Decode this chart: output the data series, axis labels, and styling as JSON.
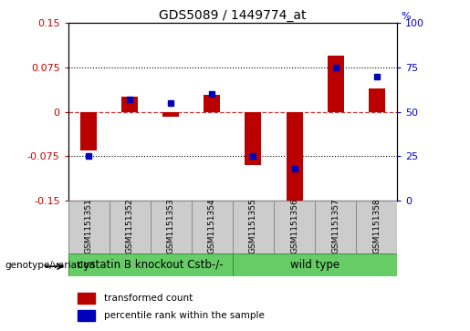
{
  "title": "GDS5089 / 1449774_at",
  "samples": [
    "GSM1151351",
    "GSM1151352",
    "GSM1151353",
    "GSM1151354",
    "GSM1151355",
    "GSM1151356",
    "GSM1151357",
    "GSM1151358"
  ],
  "transformed_count": [
    -0.065,
    0.025,
    -0.008,
    0.028,
    -0.09,
    -0.155,
    0.095,
    0.04
  ],
  "percentile_rank": [
    25,
    57,
    55,
    60,
    25,
    18,
    75,
    70
  ],
  "groups": [
    {
      "label": "cystatin B knockout Cstb-/-",
      "samples": [
        0,
        1,
        2,
        3
      ]
    },
    {
      "label": "wild type",
      "samples": [
        4,
        5,
        6,
        7
      ]
    }
  ],
  "bar_color": "#bb0000",
  "dot_color": "#0000bb",
  "ylim_left": [
    -0.15,
    0.15
  ],
  "ylim_right": [
    0,
    100
  ],
  "yticks_left": [
    -0.15,
    -0.075,
    0,
    0.075,
    0.15
  ],
  "yticks_right": [
    0,
    25,
    50,
    75,
    100
  ],
  "hline_y": [
    -0.075,
    0.0,
    0.075
  ],
  "legend_transformed": "transformed count",
  "legend_percentile": "percentile rank within the sample",
  "genotype_label": "genotype/variation",
  "left_tick_color": "#cc0000",
  "right_tick_color": "#0000cc",
  "bar_width": 0.4,
  "green_color": "#66cc66",
  "gray_color": "#cccccc",
  "sample_label_fontsize": 6.5,
  "group_label_fontsize": 8.5,
  "title_fontsize": 10
}
